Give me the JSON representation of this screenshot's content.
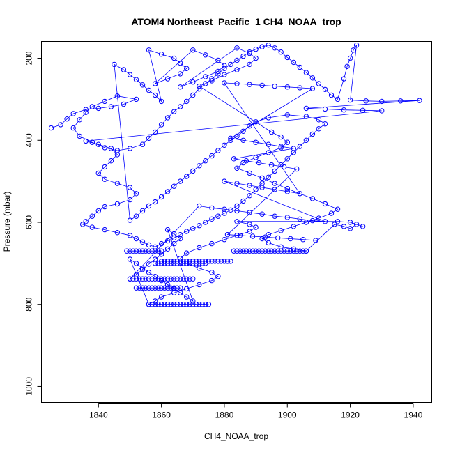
{
  "chart_data": {
    "type": "scatter",
    "title": "ATOM4 Northeast_Pacific_1 CH4_NOAA_trop",
    "xlabel": "CH4_NOAA_trop",
    "ylabel": "Pressure (mbar)",
    "xlim": [
      1822,
      1946
    ],
    "ylim": [
      1040,
      160
    ],
    "y_inverted": true,
    "grid": false,
    "legend": "none",
    "marker": "open-circle",
    "connected_by_lines": true,
    "series_color": "#0000ff",
    "x_ticks": [
      "1840",
      "1860",
      "1880",
      "1900",
      "1920",
      "1940"
    ],
    "x_tick_values": [
      1840,
      1860,
      1880,
      1900,
      1920,
      1940
    ],
    "y_ticks": [
      "200",
      "400",
      "600",
      "800",
      "1000"
    ],
    "y_tick_values": [
      200,
      400,
      600,
      800,
      1000
    ],
    "series": [
      {
        "points": [
          [
            1825,
            370
          ],
          [
            1828,
            362
          ],
          [
            1830,
            348
          ],
          [
            1832,
            335
          ],
          [
            1836,
            325
          ],
          [
            1840,
            322
          ],
          [
            1844,
            318
          ],
          [
            1848,
            312
          ],
          [
            1852,
            300
          ],
          [
            1846,
            292
          ],
          [
            1842,
            305
          ],
          [
            1838,
            318
          ],
          [
            1836,
            332
          ],
          [
            1834,
            350
          ],
          [
            1832,
            370
          ],
          [
            1834,
            390
          ],
          [
            1838,
            405
          ],
          [
            1842,
            418
          ],
          [
            1846,
            425
          ],
          [
            1850,
            420
          ],
          [
            1854,
            410
          ],
          [
            1856,
            395
          ],
          [
            1858,
            380
          ],
          [
            1860,
            362
          ],
          [
            1862,
            345
          ],
          [
            1864,
            330
          ],
          [
            1866,
            318
          ],
          [
            1868,
            305
          ],
          [
            1870,
            290
          ],
          [
            1872,
            275
          ],
          [
            1874,
            262
          ],
          [
            1876,
            250
          ],
          [
            1878,
            238
          ],
          [
            1880,
            225
          ],
          [
            1882,
            215
          ],
          [
            1884,
            205
          ],
          [
            1886,
            195
          ],
          [
            1888,
            185
          ],
          [
            1890,
            178
          ],
          [
            1892,
            172
          ],
          [
            1894,
            168
          ],
          [
            1896,
            175
          ],
          [
            1898,
            185
          ],
          [
            1900,
            198
          ],
          [
            1902,
            210
          ],
          [
            1904,
            222
          ],
          [
            1906,
            235
          ],
          [
            1908,
            248
          ],
          [
            1910,
            262
          ],
          [
            1912,
            276
          ],
          [
            1914,
            290
          ],
          [
            1916,
            300
          ],
          [
            1918,
            250
          ],
          [
            1919,
            220
          ],
          [
            1920,
            200
          ],
          [
            1921,
            180
          ],
          [
            1922,
            168
          ],
          [
            1920,
            302
          ],
          [
            1925,
            304
          ],
          [
            1930,
            305
          ],
          [
            1936,
            304
          ],
          [
            1942,
            303
          ],
          [
            1906,
            322
          ],
          [
            1912,
            324
          ],
          [
            1918,
            326
          ],
          [
            1924,
            327
          ],
          [
            1930,
            328
          ],
          [
            1836,
            402
          ],
          [
            1840,
            410
          ],
          [
            1844,
            420
          ],
          [
            1846,
            435
          ],
          [
            1844,
            450
          ],
          [
            1842,
            465
          ],
          [
            1840,
            480
          ],
          [
            1842,
            495
          ],
          [
            1846,
            505
          ],
          [
            1850,
            515
          ],
          [
            1852,
            530
          ],
          [
            1850,
            545
          ],
          [
            1846,
            555
          ],
          [
            1842,
            562
          ],
          [
            1840,
            572
          ],
          [
            1838,
            585
          ],
          [
            1836,
            598
          ],
          [
            1835,
            605
          ],
          [
            1838,
            612
          ],
          [
            1842,
            618
          ],
          [
            1846,
            625
          ],
          [
            1850,
            632
          ],
          [
            1852,
            640
          ],
          [
            1854,
            648
          ],
          [
            1856,
            655
          ],
          [
            1858,
            660
          ],
          [
            1860,
            652
          ],
          [
            1862,
            645
          ],
          [
            1864,
            638
          ],
          [
            1866,
            630
          ],
          [
            1868,
            622
          ],
          [
            1870,
            615
          ],
          [
            1872,
            608
          ],
          [
            1874,
            600
          ],
          [
            1876,
            592
          ],
          [
            1878,
            585
          ],
          [
            1880,
            578
          ],
          [
            1882,
            570
          ],
          [
            1884,
            560
          ],
          [
            1886,
            548
          ],
          [
            1888,
            535
          ],
          [
            1890,
            520
          ],
          [
            1892,
            505
          ],
          [
            1894,
            490
          ],
          [
            1896,
            475
          ],
          [
            1898,
            460
          ],
          [
            1900,
            445
          ],
          [
            1902,
            430
          ],
          [
            1904,
            415
          ],
          [
            1906,
            400
          ],
          [
            1908,
            385
          ],
          [
            1910,
            372
          ],
          [
            1912,
            360
          ],
          [
            1910,
            350
          ],
          [
            1906,
            342
          ],
          [
            1900,
            338
          ],
          [
            1894,
            345
          ],
          [
            1890,
            355
          ],
          [
            1888,
            365
          ],
          [
            1886,
            378
          ],
          [
            1884,
            390
          ],
          [
            1882,
            400
          ],
          [
            1880,
            412
          ],
          [
            1878,
            425
          ],
          [
            1876,
            438
          ],
          [
            1874,
            450
          ],
          [
            1872,
            462
          ],
          [
            1870,
            475
          ],
          [
            1868,
            488
          ],
          [
            1866,
            500
          ],
          [
            1864,
            512
          ],
          [
            1862,
            525
          ],
          [
            1860,
            538
          ],
          [
            1858,
            550
          ],
          [
            1856,
            560
          ],
          [
            1854,
            572
          ],
          [
            1852,
            585
          ],
          [
            1850,
            595
          ],
          [
            1845,
            215
          ],
          [
            1848,
            228
          ],
          [
            1850,
            240
          ],
          [
            1852,
            252
          ],
          [
            1854,
            265
          ],
          [
            1856,
            278
          ],
          [
            1858,
            290
          ],
          [
            1860,
            305
          ],
          [
            1856,
            180
          ],
          [
            1860,
            190
          ],
          [
            1864,
            200
          ],
          [
            1866,
            212
          ],
          [
            1868,
            225
          ],
          [
            1866,
            238
          ],
          [
            1862,
            250
          ],
          [
            1858,
            262
          ],
          [
            1870,
            180
          ],
          [
            1874,
            192
          ],
          [
            1878,
            205
          ],
          [
            1880,
            218
          ],
          [
            1878,
            232
          ],
          [
            1874,
            245
          ],
          [
            1870,
            258
          ],
          [
            1866,
            270
          ],
          [
            1884,
            175
          ],
          [
            1888,
            188
          ],
          [
            1890,
            200
          ],
          [
            1888,
            215
          ],
          [
            1884,
            228
          ],
          [
            1880,
            240
          ],
          [
            1876,
            255
          ],
          [
            1872,
            268
          ],
          [
            1895,
            380
          ],
          [
            1898,
            392
          ],
          [
            1900,
            405
          ],
          [
            1898,
            418
          ],
          [
            1894,
            430
          ],
          [
            1890,
            442
          ],
          [
            1886,
            455
          ],
          [
            1884,
            468
          ],
          [
            1888,
            480
          ],
          [
            1892,
            492
          ],
          [
            1896,
            505
          ],
          [
            1900,
            518
          ],
          [
            1904,
            530
          ],
          [
            1908,
            542
          ],
          [
            1912,
            555
          ],
          [
            1916,
            568
          ],
          [
            1914,
            578
          ],
          [
            1910,
            590
          ],
          [
            1906,
            600
          ],
          [
            1902,
            610
          ],
          [
            1898,
            620
          ],
          [
            1894,
            630
          ],
          [
            1892,
            640
          ],
          [
            1894,
            650
          ],
          [
            1898,
            660
          ],
          [
            1902,
            665
          ],
          [
            1906,
            670
          ],
          [
            1915,
            605
          ],
          [
            1918,
            610
          ],
          [
            1920,
            615
          ],
          [
            1922,
            605
          ],
          [
            1924,
            610
          ],
          [
            1920,
            600
          ],
          [
            1916,
            598
          ],
          [
            1884,
            598
          ],
          [
            1888,
            605
          ],
          [
            1890,
            612
          ],
          [
            1888,
            622
          ],
          [
            1884,
            632
          ],
          [
            1880,
            642
          ],
          [
            1876,
            652
          ],
          [
            1872,
            662
          ],
          [
            1868,
            675
          ],
          [
            1866,
            688
          ],
          [
            1868,
            700
          ],
          [
            1872,
            712
          ],
          [
            1876,
            722
          ],
          [
            1878,
            732
          ],
          [
            1876,
            742
          ],
          [
            1872,
            752
          ],
          [
            1868,
            762
          ],
          [
            1864,
            772
          ],
          [
            1860,
            782
          ],
          [
            1858,
            792
          ],
          [
            1856,
            800
          ],
          [
            1850,
            690
          ],
          [
            1852,
            700
          ],
          [
            1854,
            712
          ],
          [
            1856,
            722
          ],
          [
            1858,
            732
          ],
          [
            1860,
            742
          ],
          [
            1862,
            752
          ],
          [
            1864,
            762
          ],
          [
            1866,
            772
          ],
          [
            1868,
            782
          ],
          [
            1870,
            792
          ],
          [
            1862,
            618
          ],
          [
            1864,
            628
          ],
          [
            1866,
            640
          ],
          [
            1864,
            652
          ],
          [
            1862,
            665
          ],
          [
            1860,
            678
          ],
          [
            1858,
            690
          ],
          [
            1856,
            702
          ],
          [
            1854,
            715
          ],
          [
            1852,
            728
          ],
          [
            1850,
            738
          ],
          [
            1872,
            560
          ],
          [
            1876,
            565
          ],
          [
            1880,
            568
          ],
          [
            1884,
            572
          ],
          [
            1888,
            576
          ],
          [
            1892,
            580
          ],
          [
            1896,
            585
          ],
          [
            1900,
            588
          ],
          [
            1904,
            592
          ],
          [
            1908,
            596
          ],
          [
            1912,
            598
          ],
          [
            1880,
            500
          ],
          [
            1884,
            505
          ],
          [
            1888,
            510
          ],
          [
            1892,
            515
          ],
          [
            1896,
            520
          ],
          [
            1900,
            525
          ],
          [
            1904,
            530
          ],
          [
            1880,
            260
          ],
          [
            1884,
            262
          ],
          [
            1888,
            264
          ],
          [
            1892,
            266
          ],
          [
            1896,
            268
          ],
          [
            1900,
            270
          ],
          [
            1904,
            272
          ],
          [
            1908,
            274
          ],
          [
            1882,
            395
          ],
          [
            1886,
            400
          ],
          [
            1890,
            405
          ],
          [
            1894,
            410
          ],
          [
            1898,
            415
          ],
          [
            1902,
            420
          ],
          [
            1883,
            445
          ],
          [
            1887,
            450
          ],
          [
            1891,
            455
          ],
          [
            1895,
            460
          ],
          [
            1899,
            465
          ],
          [
            1903,
            470
          ],
          [
            1881,
            630
          ],
          [
            1885,
            632
          ],
          [
            1889,
            634
          ],
          [
            1893,
            636
          ],
          [
            1897,
            638
          ],
          [
            1901,
            640
          ],
          [
            1905,
            642
          ],
          [
            1909,
            644
          ]
        ],
        "bands": [
          {
            "y": 670,
            "x_from": 1849,
            "x_to": 1860,
            "step": 1
          },
          {
            "y": 670,
            "x_from": 1883,
            "x_to": 1906,
            "step": 1
          },
          {
            "y": 695,
            "x_from": 1860,
            "x_to": 1882,
            "step": 1
          },
          {
            "y": 700,
            "x_from": 1858,
            "x_to": 1874,
            "step": 1
          },
          {
            "y": 738,
            "x_from": 1850,
            "x_to": 1870,
            "step": 1
          },
          {
            "y": 760,
            "x_from": 1852,
            "x_to": 1866,
            "step": 1
          },
          {
            "y": 800,
            "x_from": 1856,
            "x_to": 1875,
            "step": 1
          }
        ]
      }
    ]
  }
}
